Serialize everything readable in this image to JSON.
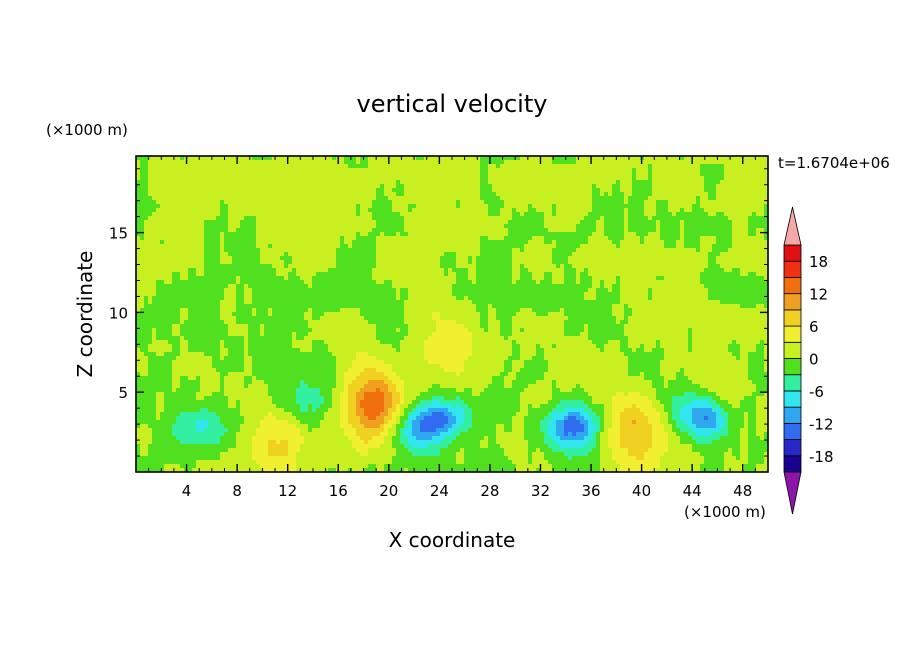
{
  "chart_data": {
    "type": "heatmap",
    "title": "vertical velocity",
    "xlabel": "X coordinate",
    "ylabel": "Z coordinate",
    "x_unit": "(×1000 m)",
    "y_unit": "(×1000 m)",
    "time_label": "t=1.6704e+06",
    "xlim": [
      0,
      50
    ],
    "ylim": [
      0,
      19.8
    ],
    "x_ticks": [
      4,
      8,
      12,
      16,
      20,
      24,
      28,
      32,
      36,
      40,
      44,
      48
    ],
    "y_ticks": [
      5,
      10,
      15
    ],
    "colorbar": {
      "levels": [
        -21,
        -18,
        -15,
        -12,
        -9,
        -6,
        -3,
        0,
        3,
        6,
        9,
        12,
        15,
        18,
        21
      ],
      "tick_labels": [
        18,
        12,
        6,
        0,
        -6,
        -12,
        -18
      ],
      "colors": [
        "#7a00a8",
        "#1a0090",
        "#2828c8",
        "#2f6cf0",
        "#2fa8f0",
        "#32e6f0",
        "#32f0a0",
        "#50e020",
        "#c8f020",
        "#f0f030",
        "#f0d020",
        "#f0a020",
        "#f07010",
        "#f03010",
        "#e01010",
        "#f0a0a0"
      ],
      "under_color": "#8c14a8",
      "over_color": "#f4a8a8"
    },
    "features": [
      {
        "name": "updraft core",
        "x": 18.8,
        "z": 4.3,
        "peak": 12
      },
      {
        "name": "updraft core",
        "x": 39.5,
        "z": 2.6,
        "peak": 9
      },
      {
        "name": "updraft",
        "x": 11.2,
        "z": 1.8,
        "peak": 5
      },
      {
        "name": "updraft",
        "x": 24.6,
        "z": 7.8,
        "peak": 4
      },
      {
        "name": "updraft",
        "x": 47.0,
        "z": 3.8,
        "peak": 4
      },
      {
        "name": "downdraft core",
        "x": 34.6,
        "z": 2.8,
        "peak": -12
      },
      {
        "name": "downdraft core",
        "x": 45.1,
        "z": 3.4,
        "peak": -12
      },
      {
        "name": "downdraft core",
        "x": 24.5,
        "z": 3.4,
        "peak": -9
      },
      {
        "name": "downdraft",
        "x": 22.3,
        "z": 2.6,
        "peak": -9
      },
      {
        "name": "downdraft",
        "x": 5.5,
        "z": 2.8,
        "peak": -6
      },
      {
        "name": "downdraft",
        "x": 13.5,
        "z": 4.5,
        "peak": -5
      }
    ]
  }
}
